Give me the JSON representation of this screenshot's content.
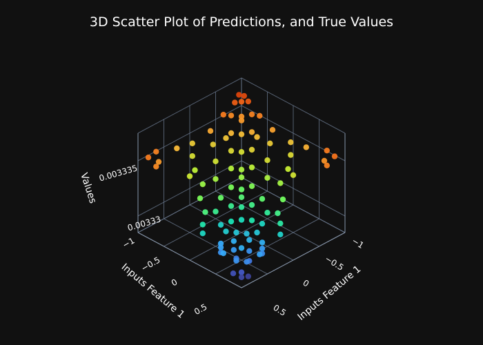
{
  "chart_data": {
    "type": "scatter3d",
    "title": "3D Scatter Plot of Predictions, and True Values",
    "x_axis": {
      "label": "Inputs Feature 1",
      "range": [
        -1,
        1
      ],
      "ticks": [
        "−1",
        "−0.5",
        "0",
        "0.5"
      ]
    },
    "y_axis": {
      "label": "Inputs Feature 1",
      "range": [
        -1,
        1
      ],
      "ticks": [
        "−1",
        "−0.5",
        "0",
        "0.5"
      ]
    },
    "z_axis": {
      "label": "Values",
      "range": [
        0.0033285,
        0.0033375
      ],
      "ticks": [
        "0.00333",
        "0.003335"
      ]
    },
    "grid": true,
    "colorscale": [
      "#30123b",
      "#4662d7",
      "#36aaf9",
      "#1ae4b6",
      "#72fe5e",
      "#c8ef34",
      "#faba39",
      "#f66b19",
      "#ca2a04",
      "#7a0403"
    ],
    "background": "#111111",
    "series": [
      {
        "name": "Predictions",
        "points": [
          {
            "x": 0.95,
            "y": 0.95,
            "z": 0.0033292
          },
          {
            "x": 0.9,
            "y": 0.9,
            "z": 0.0033294
          },
          {
            "x": 0.85,
            "y": 0.98,
            "z": 0.0033291
          },
          {
            "x": 0.98,
            "y": 0.82,
            "z": 0.0033293
          },
          {
            "x": 0.8,
            "y": 0.7,
            "z": 0.0033299
          },
          {
            "x": 0.7,
            "y": 0.85,
            "z": 0.0033298
          },
          {
            "x": 0.75,
            "y": 0.6,
            "z": 0.0033303
          },
          {
            "x": 0.6,
            "y": 0.75,
            "z": 0.0033302
          },
          {
            "x": 0.65,
            "y": 0.5,
            "z": 0.0033306
          },
          {
            "x": 0.5,
            "y": 0.65,
            "z": 0.0033307
          },
          {
            "x": 0.55,
            "y": 0.45,
            "z": 0.003331
          },
          {
            "x": 0.45,
            "y": 0.55,
            "z": 0.0033309
          },
          {
            "x": 0.9,
            "y": 0.5,
            "z": 0.0033302
          },
          {
            "x": 0.5,
            "y": 0.9,
            "z": 0.0033301
          },
          {
            "x": 0.95,
            "y": 0.2,
            "z": 0.0033313
          },
          {
            "x": 0.2,
            "y": 0.95,
            "z": 0.0033312
          },
          {
            "x": 0.85,
            "y": 0.1,
            "z": 0.0033316
          },
          {
            "x": 0.1,
            "y": 0.85,
            "z": 0.0033317
          },
          {
            "x": 0.7,
            "y": 0.0,
            "z": 0.0033321
          },
          {
            "x": 0.0,
            "y": 0.7,
            "z": 0.003332
          },
          {
            "x": 0.6,
            "y": -0.2,
            "z": 0.0033326
          },
          {
            "x": -0.2,
            "y": 0.6,
            "z": 0.0033325
          },
          {
            "x": 0.4,
            "y": -0.35,
            "z": 0.003333
          },
          {
            "x": -0.35,
            "y": 0.4,
            "z": 0.0033331
          },
          {
            "x": 0.3,
            "y": -0.6,
            "z": 0.0033334
          },
          {
            "x": -0.6,
            "y": 0.3,
            "z": 0.0033335
          },
          {
            "x": 0.15,
            "y": -0.8,
            "z": 0.0033338
          },
          {
            "x": -0.8,
            "y": 0.15,
            "z": 0.0033339
          },
          {
            "x": 0.0,
            "y": -0.95,
            "z": 0.0033342
          },
          {
            "x": -0.95,
            "y": 0.0,
            "z": 0.0033343
          },
          {
            "x": 0.2,
            "y": 0.2,
            "z": 0.0033318
          },
          {
            "x": 0.1,
            "y": 0.3,
            "z": 0.003332
          },
          {
            "x": 0.3,
            "y": 0.1,
            "z": 0.0033319
          },
          {
            "x": 0.0,
            "y": 0.0,
            "z": 0.0033324
          },
          {
            "x": -0.1,
            "y": 0.1,
            "z": 0.0033327
          },
          {
            "x": 0.1,
            "y": -0.1,
            "z": 0.0033326
          },
          {
            "x": -0.2,
            "y": -0.2,
            "z": 0.0033332
          },
          {
            "x": -0.3,
            "y": -0.1,
            "z": 0.0033334
          },
          {
            "x": -0.1,
            "y": -0.3,
            "z": 0.0033333
          },
          {
            "x": -0.4,
            "y": -0.4,
            "z": 0.0033338
          },
          {
            "x": -0.5,
            "y": -0.3,
            "z": 0.003334
          },
          {
            "x": -0.3,
            "y": -0.5,
            "z": 0.0033339
          },
          {
            "x": -0.6,
            "y": -0.6,
            "z": 0.0033344
          },
          {
            "x": -0.7,
            "y": -0.5,
            "z": 0.0033346
          },
          {
            "x": -0.5,
            "y": -0.7,
            "z": 0.0033345
          },
          {
            "x": -0.8,
            "y": -0.8,
            "z": 0.003335
          },
          {
            "x": -0.9,
            "y": -0.7,
            "z": 0.0033352
          },
          {
            "x": -0.7,
            "y": -0.9,
            "z": 0.0033351
          },
          {
            "x": -0.95,
            "y": -0.95,
            "z": 0.0033356
          },
          {
            "x": -0.85,
            "y": -0.98,
            "z": 0.0033357
          },
          {
            "x": -0.98,
            "y": -0.85,
            "z": 0.0033358
          },
          {
            "x": -0.6,
            "y": -0.95,
            "z": 0.0033353
          },
          {
            "x": -0.95,
            "y": -0.6,
            "z": 0.0033352
          },
          {
            "x": -0.3,
            "y": -0.9,
            "z": 0.0033347
          },
          {
            "x": -0.9,
            "y": -0.3,
            "z": 0.0033348
          },
          {
            "x": 0.4,
            "y": 0.8,
            "z": 0.0033306
          },
          {
            "x": 0.8,
            "y": 0.4,
            "z": 0.0033305
          },
          {
            "x": 0.6,
            "y": 0.2,
            "z": 0.0033312
          },
          {
            "x": 0.2,
            "y": 0.6,
            "z": 0.0033313
          },
          {
            "x": 0.35,
            "y": 0.35,
            "z": 0.0033314
          }
        ]
      },
      {
        "name": "True Values",
        "points": [
          {
            "x": 0.9,
            "y": 0.8,
            "z": 0.0033302
          },
          {
            "x": 0.8,
            "y": 0.9,
            "z": 0.0033301
          },
          {
            "x": 0.7,
            "y": 0.7,
            "z": 0.0033306
          },
          {
            "x": 0.95,
            "y": 0.6,
            "z": 0.0033305
          },
          {
            "x": 0.6,
            "y": 0.95,
            "z": 0.0033304
          },
          {
            "x": 0.5,
            "y": 0.3,
            "z": 0.0033315
          },
          {
            "x": 0.3,
            "y": 0.5,
            "z": 0.0033316
          },
          {
            "x": 0.1,
            "y": 0.1,
            "z": 0.0033322
          },
          {
            "x": -0.1,
            "y": -0.1,
            "z": 0.003333
          },
          {
            "x": 0.2,
            "y": -0.3,
            "z": 0.0033331
          },
          {
            "x": -0.3,
            "y": 0.2,
            "z": 0.0033332
          },
          {
            "x": 0.5,
            "y": -0.5,
            "z": 0.0033336
          },
          {
            "x": -0.5,
            "y": 0.5,
            "z": 0.0033337
          },
          {
            "x": 0.8,
            "y": -0.8,
            "z": 0.0033349
          },
          {
            "x": -0.8,
            "y": 0.8,
            "z": 0.003335
          },
          {
            "x": 0.9,
            "y": -0.9,
            "z": 0.0033353
          },
          {
            "x": -0.9,
            "y": 0.9,
            "z": 0.0033354
          },
          {
            "x": 0.7,
            "y": -0.95,
            "z": 0.0033352
          },
          {
            "x": -0.95,
            "y": 0.7,
            "z": 0.0033353
          },
          {
            "x": 0.95,
            "y": -0.7,
            "z": 0.0033351
          },
          {
            "x": -0.7,
            "y": 0.95,
            "z": 0.0033352
          },
          {
            "x": 0.3,
            "y": -0.95,
            "z": 0.0033345
          },
          {
            "x": -0.95,
            "y": 0.3,
            "z": 0.0033346
          },
          {
            "x": 0.0,
            "y": -0.5,
            "z": 0.0033337
          },
          {
            "x": -0.5,
            "y": 0.0,
            "z": 0.0033338
          },
          {
            "x": -0.4,
            "y": -0.7,
            "z": 0.0033343
          },
          {
            "x": -0.7,
            "y": -0.4,
            "z": 0.0033344
          },
          {
            "x": -0.75,
            "y": -0.75,
            "z": 0.0033349
          },
          {
            "x": -1.0,
            "y": -0.95,
            "z": 0.003336
          },
          {
            "x": -0.95,
            "y": -1.0,
            "z": 0.0033361
          },
          {
            "x": -0.2,
            "y": -0.75,
            "z": 0.0033341
          },
          {
            "x": -0.75,
            "y": -0.2,
            "z": 0.0033342
          },
          {
            "x": 0.45,
            "y": 0.85,
            "z": 0.0033303
          },
          {
            "x": 0.85,
            "y": 0.45,
            "z": 0.0033304
          },
          {
            "x": 0.65,
            "y": 0.35,
            "z": 0.0033311
          },
          {
            "x": 0.35,
            "y": 0.65,
            "z": 0.003331
          },
          {
            "x": -0.05,
            "y": 0.35,
            "z": 0.0033323
          },
          {
            "x": 0.35,
            "y": -0.05,
            "z": 0.0033324
          },
          {
            "x": 0.55,
            "y": 0.05,
            "z": 0.0033319
          },
          {
            "x": 0.05,
            "y": 0.55,
            "z": 0.0033318
          }
        ]
      }
    ]
  }
}
